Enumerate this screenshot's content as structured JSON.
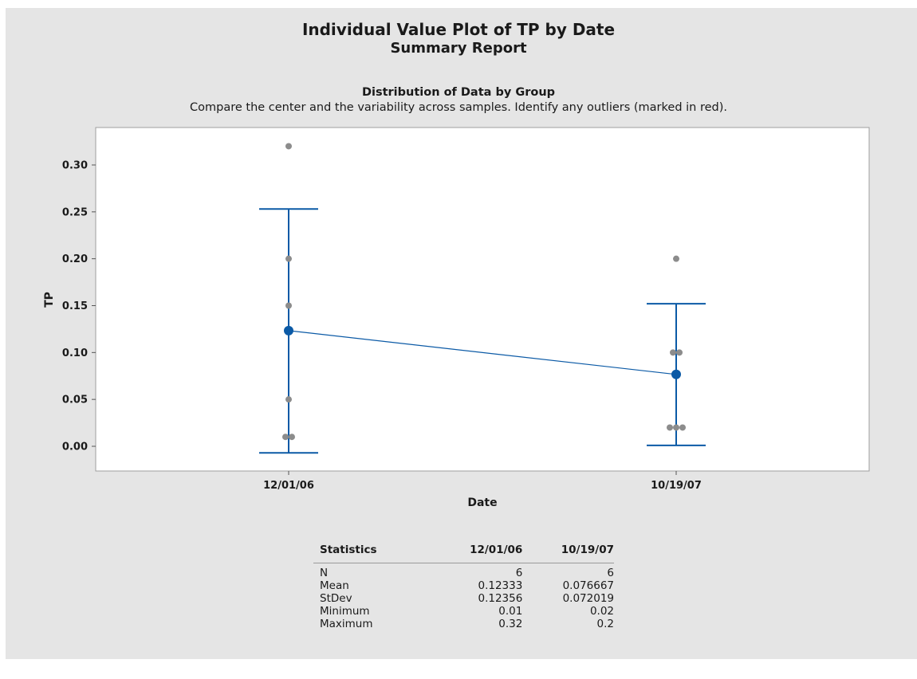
{
  "header": {
    "title": "Individual Value Plot of TP by Date",
    "subtitle": "Summary Report"
  },
  "section": {
    "title": "Distribution of Data by Group",
    "subtitle": "Compare the center and the variability across samples. Identify any outliers (marked in red)."
  },
  "colors": {
    "panel_bg": "#e5e5e5",
    "plot_bg": "#ffffff",
    "data_points": "#8c8c8c",
    "mean_and_interval": "#0b5aa6"
  },
  "chart_data": {
    "type": "scatter",
    "title": "Distribution of Data by Group",
    "xlabel": "Date",
    "ylabel": "TP",
    "categories": [
      "12/01/06",
      "10/19/07"
    ],
    "yticks": [
      "0.00",
      "0.05",
      "0.10",
      "0.15",
      "0.20",
      "0.25",
      "0.30"
    ],
    "ylim": [
      -0.026,
      0.342
    ],
    "grid": false,
    "groups": [
      {
        "category": "12/01/06",
        "points": [
          0.32,
          0.2,
          0.15,
          0.05,
          0.01,
          0.01
        ],
        "mean": 0.12333,
        "interval": [
          -0.007,
          0.253
        ]
      },
      {
        "category": "10/19/07",
        "points": [
          0.2,
          0.1,
          0.1,
          0.02,
          0.02,
          0.02
        ],
        "mean": 0.076667,
        "interval": [
          0.001,
          0.152
        ]
      }
    ]
  },
  "statistics": {
    "headers": [
      "Statistics",
      "12/01/06",
      "10/19/07"
    ],
    "rows": [
      {
        "label": "N",
        "v1": "6",
        "v2": "6"
      },
      {
        "label": "Mean",
        "v1": "0.12333",
        "v2": "0.076667"
      },
      {
        "label": "StDev",
        "v1": "0.12356",
        "v2": "0.072019"
      },
      {
        "label": "Minimum",
        "v1": "0.01",
        "v2": "0.02"
      },
      {
        "label": "Maximum",
        "v1": "0.32",
        "v2": "0.2"
      }
    ]
  }
}
